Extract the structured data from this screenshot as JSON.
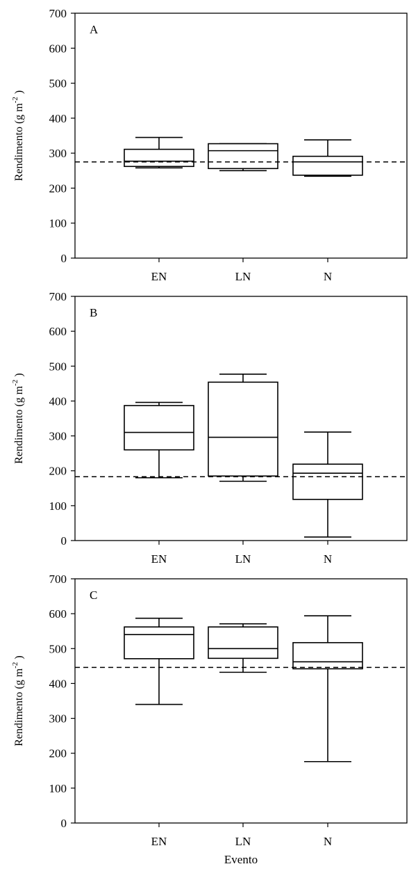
{
  "chart_data": [
    {
      "type": "box",
      "panel_label": "A",
      "categories": [
        "EN",
        "LN",
        "N"
      ],
      "boxes": [
        {
          "category": "EN",
          "whisker_low": 258,
          "q1": 262,
          "median": 277,
          "q3": 311,
          "whisker_high": 345
        },
        {
          "category": "LN",
          "whisker_low": 250,
          "q1": 256,
          "median": 307,
          "q3": 327,
          "whisker_high": 327
        },
        {
          "category": "N",
          "whisker_low": 234,
          "q1": 237,
          "median": 275,
          "q3": 291,
          "whisker_high": 338
        }
      ],
      "reference_line": 275,
      "ylabel": "Rendimento (g m",
      "ylabel_sup": "-2",
      "ylabel_close": ")",
      "ylim": [
        0,
        700
      ],
      "yticks": [
        "0",
        "100",
        "200",
        "300",
        "400",
        "500",
        "600",
        "700"
      ]
    },
    {
      "type": "box",
      "panel_label": "B",
      "categories": [
        "EN",
        "LN",
        "N"
      ],
      "boxes": [
        {
          "category": "EN",
          "whisker_low": 180,
          "q1": 260,
          "median": 310,
          "q3": 387,
          "whisker_high": 396
        },
        {
          "category": "LN",
          "whisker_low": 170,
          "q1": 185,
          "median": 296,
          "q3": 454,
          "whisker_high": 477
        },
        {
          "category": "N",
          "whisker_low": 10,
          "q1": 118,
          "median": 193,
          "q3": 219,
          "whisker_high": 311
        }
      ],
      "reference_line": 183,
      "ylabel": "Rendimento (g m",
      "ylabel_sup": "-2",
      "ylabel_close": ")",
      "ylim": [
        0,
        700
      ],
      "yticks": [
        "0",
        "100",
        "200",
        "300",
        "400",
        "500",
        "600",
        "700"
      ]
    },
    {
      "type": "box",
      "panel_label": "C",
      "categories": [
        "EN",
        "LN",
        "N"
      ],
      "boxes": [
        {
          "category": "EN",
          "whisker_low": 340,
          "q1": 471,
          "median": 540,
          "q3": 562,
          "whisker_high": 587
        },
        {
          "category": "LN",
          "whisker_low": 432,
          "q1": 472,
          "median": 500,
          "q3": 562,
          "whisker_high": 571
        },
        {
          "category": "N",
          "whisker_low": 176,
          "q1": 442,
          "median": 462,
          "q3": 517,
          "whisker_high": 594
        }
      ],
      "reference_line": 446,
      "ylabel": "Rendimento (g m",
      "ylabel_sup": "-2",
      "ylabel_close": ")",
      "ylim": [
        0,
        700
      ],
      "yticks": [
        "0",
        "100",
        "200",
        "300",
        "400",
        "500",
        "600",
        "700"
      ]
    }
  ],
  "xlabel": "Evento"
}
